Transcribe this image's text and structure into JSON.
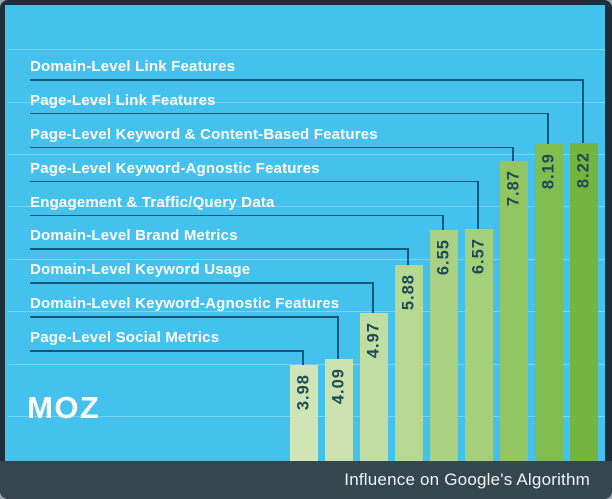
{
  "frame": {
    "border_color": "#1c2e39",
    "background": "#45c1ed"
  },
  "logo": {
    "text": "MOZ"
  },
  "footer": {
    "caption": "Influence on Google's Algorithm",
    "background": "#36464f",
    "text_color": "#eef3f4"
  },
  "chart_data": {
    "type": "bar",
    "title": "Influence on Google's Algorithm",
    "categories": [
      "Page-Level Social Metrics",
      "Domain-Level Keyword-Agnostic Features",
      "Domain-Level Keyword Usage",
      "Domain-Level Brand Metrics",
      "Engagement & Traffic/Query Data",
      "Page-Level Keyword-Agnostic Features",
      "Page-Level Keyword & Content-Based Features",
      "Page-Level Link Features",
      "Domain-Level Link Features"
    ],
    "values": [
      3.98,
      4.09,
      4.97,
      5.88,
      6.55,
      6.57,
      7.87,
      8.19,
      8.22
    ],
    "value_labels": [
      "3.98",
      "4.09",
      "4.97",
      "5.88",
      "6.55",
      "6.57",
      "7.87",
      "8.19",
      "8.22"
    ],
    "ylim": [
      0,
      10
    ],
    "grid_values": [
      3,
      4,
      5,
      6,
      7,
      8,
      9,
      10
    ],
    "grid": true,
    "legend_position": "labels-left-with-leader-lines",
    "bar_colors": [
      "#d0e5b5",
      "#cce2ae",
      "#c2dda1",
      "#b6d892",
      "#abd284",
      "#a4cf7b",
      "#93c663",
      "#82bd4f",
      "#73b540"
    ],
    "gridline_color": "rgba(255,255,255,0.28)",
    "leader_line_color": "#14587c",
    "label_text_color": "#ffffff",
    "value_text_color": "#1d4a55"
  }
}
